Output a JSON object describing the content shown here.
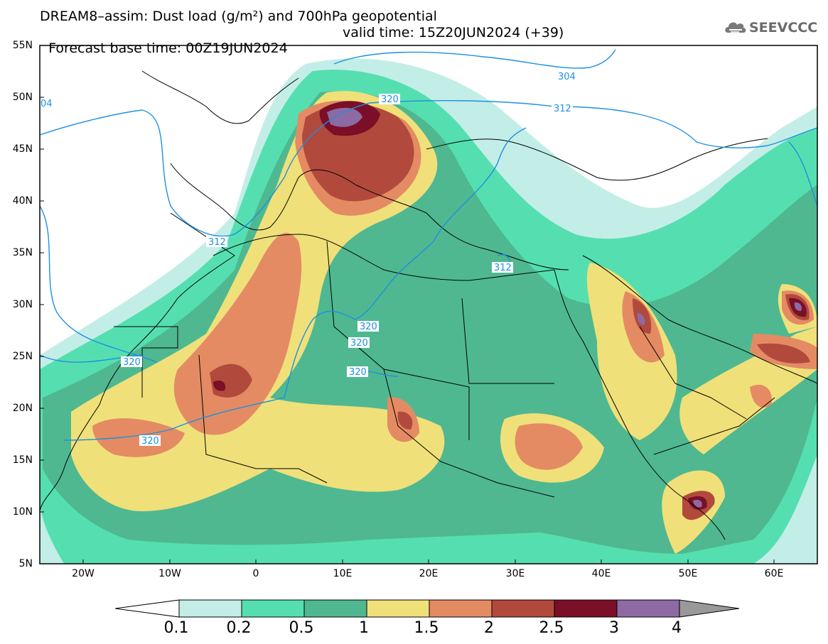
{
  "title_line1": "DREAM8–assim: Dust load (g/m²) and 700hPa geopotential",
  "title_line2_left": "Forecast base time: 00Z19JUN2024",
  "title_line2_right": "valid time: 15Z20JUN2024 (+39)",
  "logo_text": "SEEVCCC",
  "logo_icon": "cloud-icon",
  "lat_labels": [
    "55N",
    "50N",
    "45N",
    "40N",
    "35N",
    "30N",
    "25N",
    "20N",
    "15N",
    "10N",
    "5N"
  ],
  "lon_labels": [
    "20W",
    "10W",
    "0",
    "10E",
    "20E",
    "30E",
    "40E",
    "50E",
    "60E"
  ],
  "contour_labels": [
    "320",
    "312",
    "304",
    "320",
    "312",
    "312",
    "320",
    "320",
    "320",
    "320",
    "04"
  ],
  "colorbar": {
    "labels": [
      "0.1",
      "0.2",
      "0.5",
      "1",
      "1.5",
      "2",
      "2.5",
      "3",
      "4"
    ],
    "colors": [
      "#c3eee7",
      "#55dfb0",
      "#4fb890",
      "#f0e07a",
      "#e48b63",
      "#b14a3c",
      "#7a0f27",
      "#8d6aa4",
      "#999999"
    ]
  },
  "colors": {
    "contour": "#1e90e0",
    "background": "#ffffff"
  }
}
